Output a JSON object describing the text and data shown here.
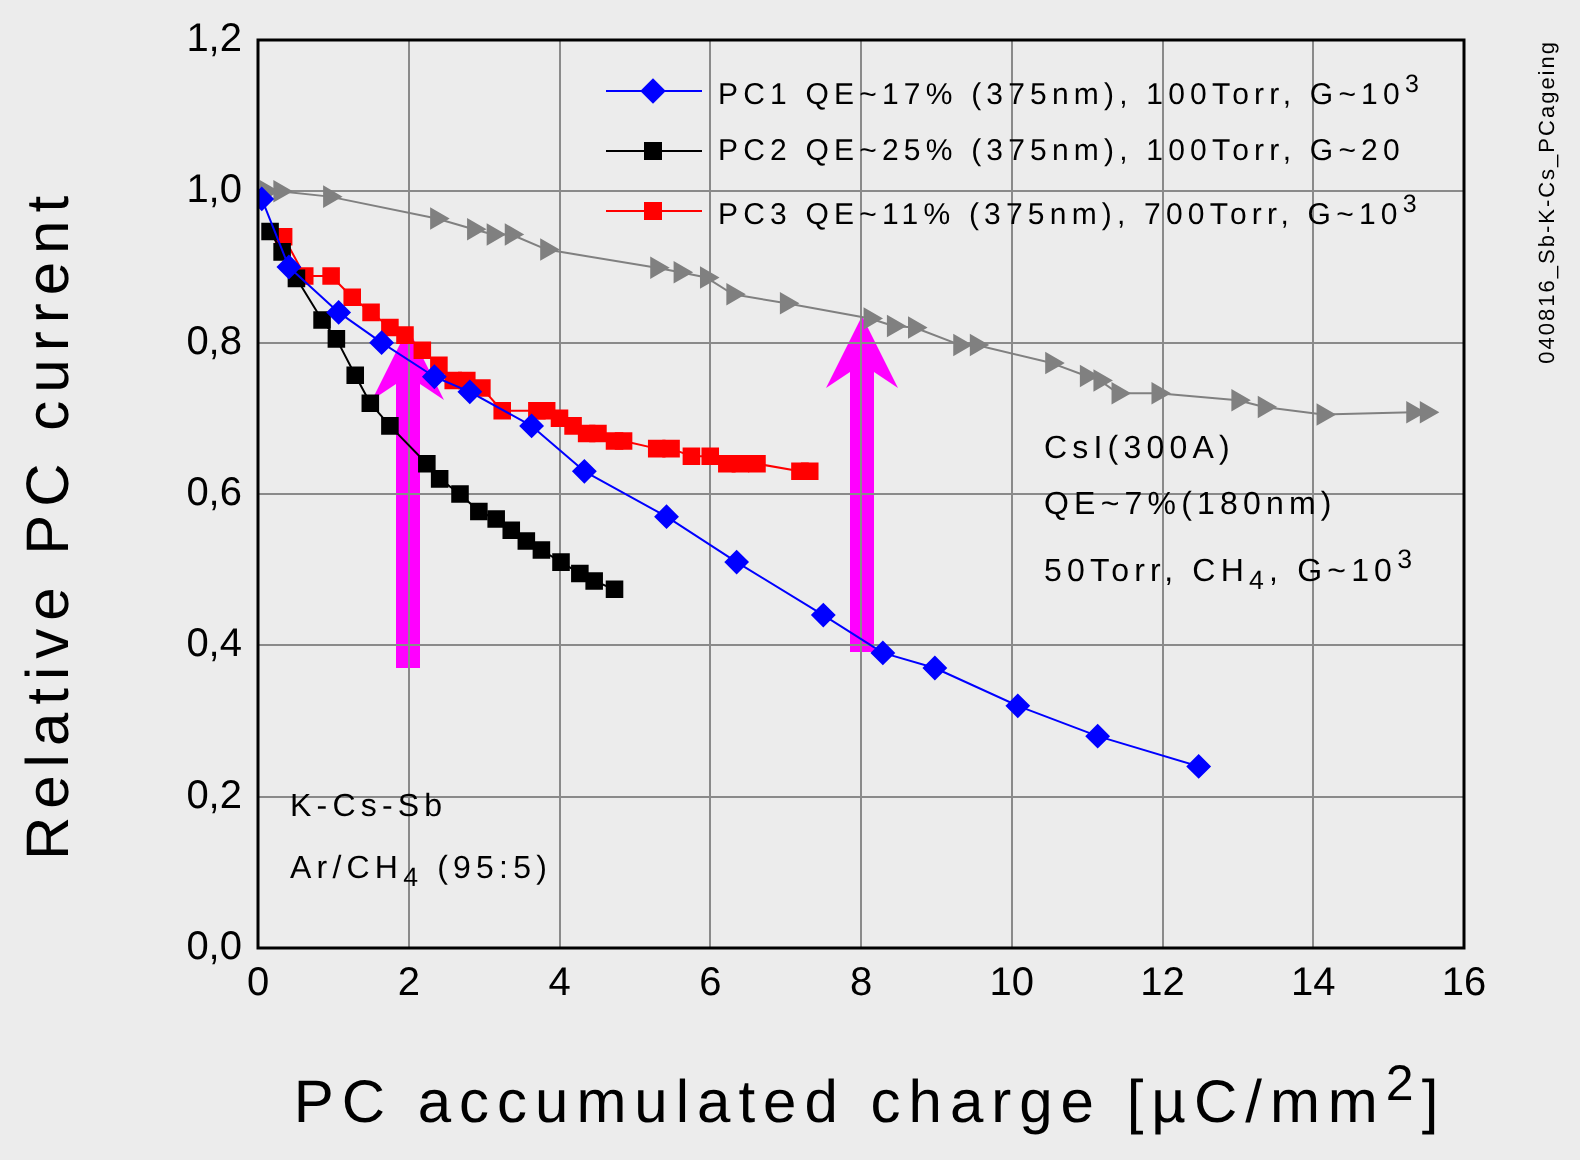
{
  "chart_data": {
    "type": "line",
    "xlabel": "PC accumulated charge [µC/mm$^{2}$]",
    "ylabel": "Relative PC current",
    "xlim": [
      0,
      16
    ],
    "xticks": [
      0,
      2,
      4,
      6,
      8,
      10,
      12,
      14,
      16
    ],
    "ylim": [
      0,
      1.2
    ],
    "yticks": [
      {
        "value": 0,
        "label": "0,0"
      },
      {
        "value": 0.2,
        "label": "0,2"
      },
      {
        "value": 0.4,
        "label": "0,4"
      },
      {
        "value": 0.6,
        "label": "0,6"
      },
      {
        "value": 0.8,
        "label": "0,8"
      },
      {
        "value": 1.0,
        "label": "1,0"
      },
      {
        "value": 1.2,
        "label": "1,2"
      }
    ],
    "grid": true,
    "legend": "top right",
    "series": [
      {
        "name": "PC1 QE~17% (375nm), 100Torr, G~10$^{3}$",
        "color": "#0000ff",
        "marker": "diamond",
        "x": [
          0.05,
          0.41,
          1.07,
          1.64,
          2.34,
          2.81,
          3.63,
          4.33,
          5.42,
          6.35,
          7.5,
          8.29,
          8.98,
          10.08,
          11.14,
          12.48
        ],
        "values": [
          0.99,
          0.9,
          0.84,
          0.8,
          0.755,
          0.735,
          0.69,
          0.63,
          0.57,
          0.51,
          0.44,
          0.39,
          0.37,
          0.32,
          0.28,
          0.24
        ]
      },
      {
        "name": "PC2 QE~25% (375nm), 100Torr, G~20",
        "color": "#000000",
        "marker": "square",
        "x": [
          0.16,
          0.32,
          0.51,
          0.85,
          1.04,
          1.29,
          1.49,
          1.75,
          2.24,
          2.41,
          2.68,
          2.93,
          3.16,
          3.36,
          3.56,
          3.76,
          4.02,
          4.27,
          4.46,
          4.73
        ],
        "values": [
          0.947,
          0.92,
          0.885,
          0.83,
          0.805,
          0.757,
          0.72,
          0.69,
          0.64,
          0.62,
          0.6,
          0.577,
          0.567,
          0.552,
          0.538,
          0.526,
          0.51,
          0.495,
          0.485,
          0.474
        ]
      },
      {
        "name": "PC3 QE~11% (375nm), 700Torr, G~10$^{3}$",
        "color": "#ff0000",
        "marker": "square",
        "x": [
          0.34,
          0.62,
          0.97,
          1.25,
          1.5,
          1.75,
          1.95,
          2.18,
          2.4,
          2.59,
          2.77,
          2.97,
          3.24,
          3.7,
          3.83,
          4.0,
          4.18,
          4.36,
          4.51,
          4.73,
          4.85,
          5.29,
          5.48,
          5.75,
          6.0,
          6.22,
          6.4,
          6.62,
          7.19,
          7.32
        ],
        "values": [
          0.94,
          0.888,
          0.888,
          0.86,
          0.84,
          0.82,
          0.81,
          0.79,
          0.77,
          0.75,
          0.75,
          0.74,
          0.71,
          0.71,
          0.71,
          0.7,
          0.69,
          0.68,
          0.68,
          0.67,
          0.67,
          0.66,
          0.66,
          0.65,
          0.65,
          0.64,
          0.64,
          0.64,
          0.63,
          0.63
        ]
      },
      {
        "color": "#808080",
        "marker": "triangle",
        "x": [
          0.11,
          0.29,
          0.95,
          2.37,
          2.86,
          3.12,
          3.36,
          3.83,
          5.29,
          5.6,
          5.95,
          6.3,
          7.01,
          8.12,
          8.43,
          8.71,
          9.31,
          9.53,
          10.53,
          10.99,
          11.17,
          11.41,
          11.94,
          13.0,
          13.35,
          14.13,
          15.32,
          15.5
        ],
        "values": [
          1.0,
          1.0,
          0.993,
          0.964,
          0.95,
          0.943,
          0.943,
          0.923,
          0.899,
          0.893,
          0.886,
          0.864,
          0.852,
          0.832,
          0.822,
          0.82,
          0.797,
          0.797,
          0.773,
          0.756,
          0.75,
          0.733,
          0.733,
          0.724,
          0.715,
          0.705,
          0.708,
          0.708
        ]
      }
    ],
    "annotations": [
      "CsI(300A)",
      "QE~7%(180nm)",
      "50Torr, CH$_{4}$, G~10$^{3}$",
      "K-Cs-Sb",
      "Ar/CH$_{4}$ (95:5)",
      "040816_Sb-K-Cs_PCageing"
    ]
  }
}
